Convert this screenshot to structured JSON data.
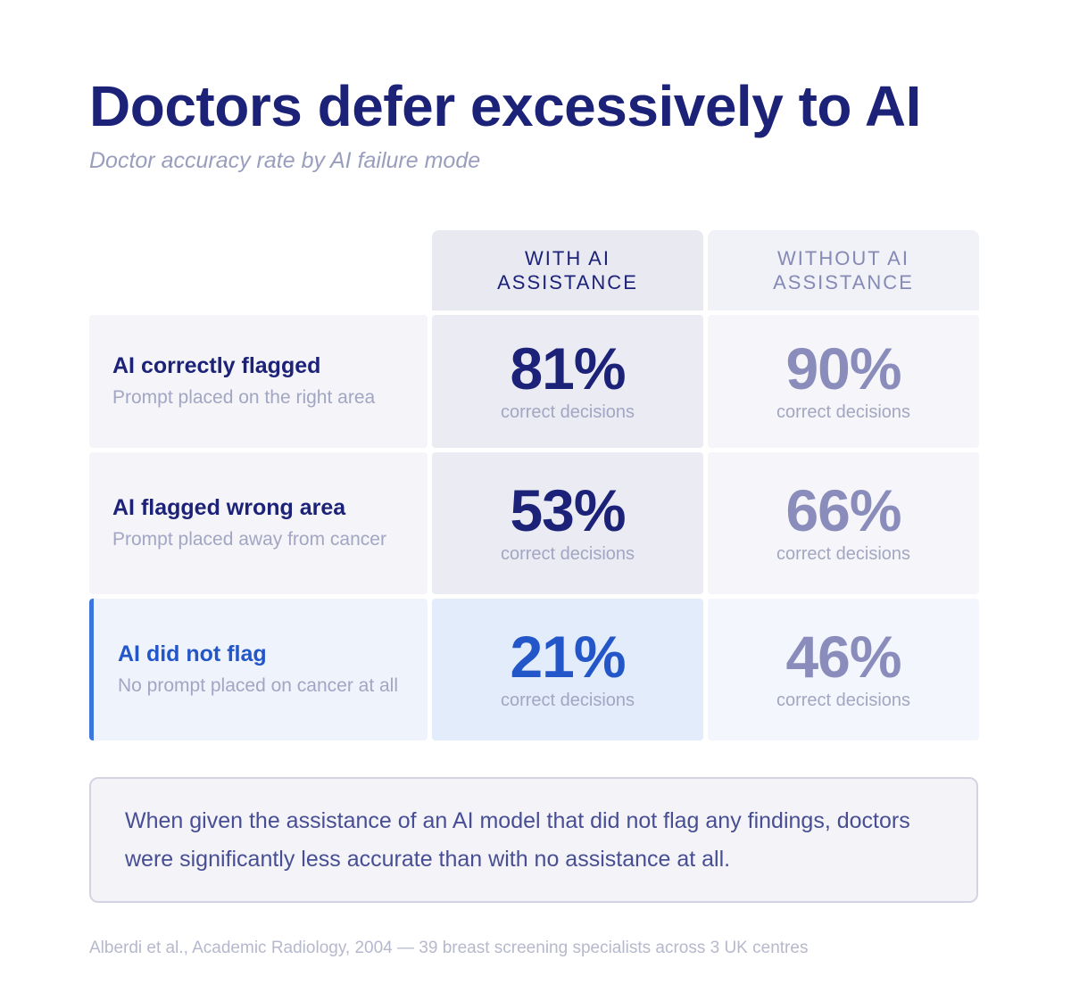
{
  "title": "Doctors defer excessively to AI",
  "subtitle": "Doctor accuracy rate by AI failure mode",
  "chart_data": {
    "type": "table",
    "columns": [
      "WITH AI ASSISTANCE",
      "WITHOUT AI ASSISTANCE"
    ],
    "unit_label": "correct decisions",
    "rows": [
      {
        "label": "AI correctly flagged",
        "sublabel": "Prompt placed on the right area",
        "with": "81%",
        "without": "90%",
        "with_value": 81,
        "without_value": 90
      },
      {
        "label": "AI flagged wrong area",
        "sublabel": "Prompt placed away from cancer",
        "with": "53%",
        "without": "66%",
        "with_value": 53,
        "without_value": 66
      },
      {
        "label": "AI did not flag",
        "sublabel": "No prompt placed on cancer at all",
        "with": "21%",
        "without": "46%",
        "with_value": 21,
        "without_value": 46
      }
    ],
    "highlighted_row": "AI did not flag",
    "colors": {
      "primary": "#1c2278",
      "muted": "#8a8dbb",
      "highlight": "#2356c8"
    }
  },
  "callout": "When given the assistance of an AI model that did not flag any findings, doctors were significantly less accurate than with no assistance at all.",
  "source": "Alberdi et al., Academic Radiology, 2004 — 39 breast screening specialists across 3 UK centres"
}
